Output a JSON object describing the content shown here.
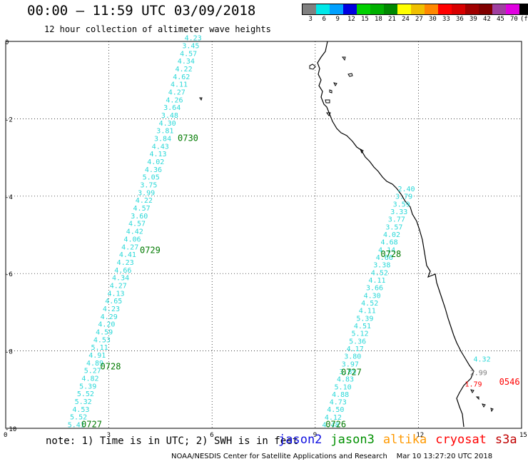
{
  "header": {
    "title": "00:00 — 11:59 UTC 03/09/2018",
    "subtitle": "12 hour collection of altimeter wave heights"
  },
  "legend": {
    "colors": [
      "#808080",
      "#00e8e8",
      "#00a0ff",
      "#0000e0",
      "#00d000",
      "#00b000",
      "#008800",
      "#ffff00",
      "#f0c000",
      "#ff8800",
      "#ff0000",
      "#d80000",
      "#a00000",
      "#800000",
      "#a040a0",
      "#e000e0",
      "#000000"
    ],
    "labels": [
      "3",
      "6",
      "9",
      "12",
      "15",
      "18",
      "21",
      "24",
      "27",
      "30",
      "33",
      "36",
      "39",
      "42",
      "45",
      "70",
      "(ft)"
    ]
  },
  "axes": {
    "x_ticks": [
      "0",
      "3",
      "6",
      "9",
      "12",
      "15"
    ],
    "y_ticks": [
      "0",
      "-2",
      "-4",
      "-6",
      "-8",
      "-10"
    ]
  },
  "tracks": [
    {
      "name": "track-a",
      "start": [
        5.2,
        0.1
      ],
      "end": [
        1.8,
        -9.9
      ],
      "values": [
        "4.23",
        "3.45",
        "4.57",
        "4.34",
        "4.22",
        "4.62",
        "4.11",
        "4.27",
        "4.26",
        "3.64",
        "3.48",
        "4.30",
        "3.81",
        "3.84",
        "4.43",
        "4.13",
        "4.02",
        "4.36",
        "5.05",
        "3.75",
        "3.99",
        "4.22",
        "4.57",
        "3.60",
        "4.57",
        "4.42",
        "4.06",
        "4.27",
        "4.41",
        "4.23",
        "4.66",
        "4.34",
        "4.27",
        "4.13",
        "4.65",
        "4.23",
        "4.29",
        "4.20",
        "4.59",
        "4.53",
        "5.11",
        "4.91",
        "4.89",
        "5.27",
        "4.82",
        "5.39",
        "5.52",
        "5.32",
        "4.53",
        "5.52",
        "5.41"
      ]
    },
    {
      "name": "track-b",
      "start": [
        11.4,
        -3.8
      ],
      "end": [
        9.2,
        -9.9
      ],
      "values": [
        "2.40",
        "3.79",
        "3.59",
        "3.33",
        "3.77",
        "3.57",
        "4.02",
        "4.68",
        "4.14",
        "4.66",
        "3.38",
        "4.52",
        "4.11",
        "3.66",
        "4.30",
        "4.52",
        "4.11",
        "5.39",
        "4.51",
        "5.12",
        "5.36",
        "4.17",
        "3.80",
        "3.97",
        "3.85",
        "4.83",
        "5.10",
        "4.88",
        "4.73",
        "4.50",
        "4.12",
        "4.48"
      ]
    },
    {
      "name": "track-c",
      "values": [
        "4.32",
        "2.99",
        "1.79"
      ],
      "colors": [
        "#2ad8d8",
        "#808080",
        "#ff0000"
      ]
    }
  ],
  "time_labels": [
    {
      "text": "0730",
      "x": 5.0,
      "y": -2.5,
      "color": "#007a00"
    },
    {
      "text": "0729",
      "x": 3.9,
      "y": -5.4,
      "color": "#007a00"
    },
    {
      "text": "0728",
      "x": 2.75,
      "y": -8.4,
      "color": "#007a00"
    },
    {
      "text": "0727",
      "x": 2.2,
      "y": -9.9,
      "color": "#007a00"
    },
    {
      "text": "0728",
      "x": 10.9,
      "y": -5.5,
      "color": "#007a00"
    },
    {
      "text": "0727",
      "x": 9.75,
      "y": -8.55,
      "color": "#007a00"
    },
    {
      "text": "0726",
      "x": 9.3,
      "y": -9.9,
      "color": "#007a00"
    },
    {
      "text": "0546",
      "x": 14.35,
      "y": -8.8,
      "color": "#ff0000"
    }
  ],
  "note": "note: 1) Time is in UTC; 2) SWH is in feet",
  "satellites": [
    {
      "name": "jason2",
      "color": "#1010e0"
    },
    {
      "name": "jason3",
      "color": "#009000"
    },
    {
      "name": "altika",
      "color": "#ff9900"
    },
    {
      "name": "cryosat",
      "color": "#ff0000"
    },
    {
      "name": "s3a",
      "color": "#c00000"
    }
  ],
  "credit": "NOAA/NESDIS Center for Satellite Applications and Research    Mar 10 13:27:20 UTC 2018"
}
